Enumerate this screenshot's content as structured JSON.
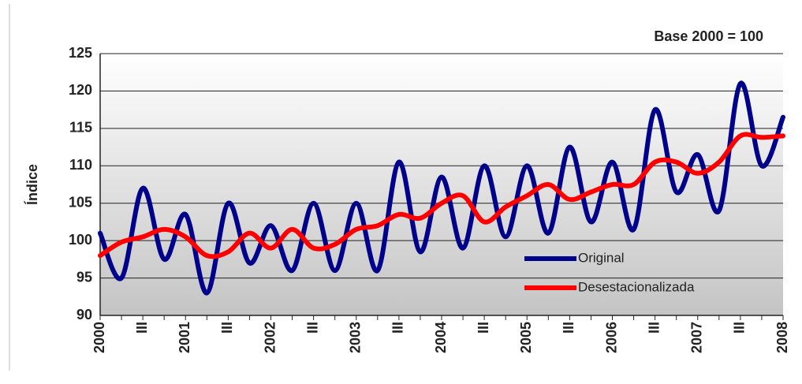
{
  "chart_data": {
    "type": "line",
    "annotation": "Base 2000 = 100",
    "y_label": "Índice",
    "categories": [
      "2000",
      null,
      "III",
      null,
      "2001",
      null,
      "III",
      null,
      "2002",
      null,
      "III",
      null,
      "2003",
      null,
      "III",
      null,
      "2004",
      null,
      "III",
      null,
      "2005",
      null,
      "III",
      null,
      "2006",
      null,
      "III",
      null,
      "2007",
      null,
      "III",
      null,
      "2008"
    ],
    "series": [
      {
        "name": "Original",
        "color": "#00008b",
        "values": [
          101,
          95,
          107,
          97.5,
          103.5,
          93,
          105,
          97,
          102,
          96,
          105,
          96,
          105,
          96,
          110.5,
          98.5,
          108.5,
          99,
          110,
          100.5,
          110,
          101,
          112.5,
          102.5,
          110.5,
          101.5,
          117.5,
          106.5,
          111.5,
          104,
          121,
          110,
          116.5
        ]
      },
      {
        "name": "Desestacionalizada",
        "color": "#ff0000",
        "values": [
          98,
          99.8,
          100.5,
          101.5,
          100.5,
          98,
          98.5,
          101,
          99,
          101.5,
          99,
          99.5,
          101.5,
          102,
          103.5,
          103,
          105,
          106,
          102.5,
          104.5,
          106,
          107.5,
          105.5,
          106.5,
          107.5,
          107.5,
          110.5,
          110.5,
          109,
          110.5,
          114,
          113.8,
          114
        ]
      }
    ],
    "ylim": [
      90,
      125
    ],
    "yticks": [
      90,
      95,
      100,
      105,
      110,
      115,
      120,
      125
    ],
    "grid": true,
    "legend": "lower right"
  }
}
